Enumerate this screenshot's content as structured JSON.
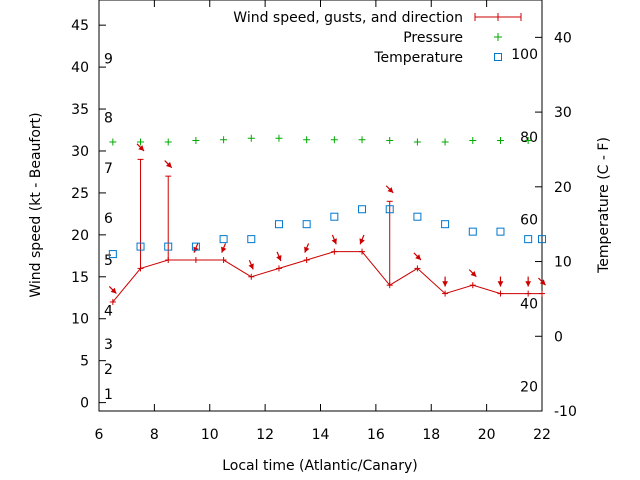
{
  "chart_data": {
    "type": "line",
    "xlabel": "Local time (Atlantic/Canary)",
    "ylabel": "Wind speed (kt - Beaufort)",
    "y2label": "Temperature (C - F)",
    "xlim": [
      6,
      22
    ],
    "ylim": [
      -1,
      48
    ],
    "y2lim": [
      -10,
      45
    ],
    "grid": false,
    "legend_position": "top-right",
    "x_ticks": [
      6,
      8,
      10,
      12,
      14,
      16,
      18,
      20,
      22
    ],
    "y_ticks": [
      0,
      5,
      10,
      15,
      20,
      25,
      30,
      35,
      40,
      45
    ],
    "y2_ticks": [
      -10,
      0,
      10,
      20,
      30,
      40
    ],
    "beaufort_labels": [
      {
        "label": "1",
        "kt": 1
      },
      {
        "label": "2",
        "kt": 4
      },
      {
        "label": "3",
        "kt": 7
      },
      {
        "label": "4",
        "kt": 11
      },
      {
        "label": "5",
        "kt": 17
      },
      {
        "label": "6",
        "kt": 22
      },
      {
        "label": "7",
        "kt": 28
      },
      {
        "label": "8",
        "kt": 34
      },
      {
        "label": "9",
        "kt": 41
      }
    ],
    "fahrenheit_labels": [
      {
        "label": "20",
        "c": -6.7
      },
      {
        "label": "40",
        "c": 4.4
      },
      {
        "label": "60",
        "c": 15.6
      },
      {
        "label": "80",
        "c": 26.7
      },
      {
        "label": "100",
        "c": 37.8
      }
    ],
    "series": [
      {
        "name": "Wind speed, gusts, and direction",
        "color": "#cc0000",
        "points": [
          {
            "x": 6.5,
            "speed": 12,
            "gust": 12,
            "dir": "NW"
          },
          {
            "x": 7.5,
            "speed": 16,
            "gust": 29,
            "dir": "NW"
          },
          {
            "x": 8.5,
            "speed": 17,
            "gust": 27,
            "dir": "NW"
          },
          {
            "x": 9.5,
            "speed": 17,
            "gust": 17,
            "dir": "NNE"
          },
          {
            "x": 10.5,
            "speed": 17,
            "gust": 17,
            "dir": "NNE"
          },
          {
            "x": 11.5,
            "speed": 15,
            "gust": 15,
            "dir": "NNW"
          },
          {
            "x": 12.5,
            "speed": 16,
            "gust": 16,
            "dir": "NNW"
          },
          {
            "x": 13.5,
            "speed": 17,
            "gust": 17,
            "dir": "NNE"
          },
          {
            "x": 14.5,
            "speed": 18,
            "gust": 18,
            "dir": "NNW"
          },
          {
            "x": 15.5,
            "speed": 18,
            "gust": 18,
            "dir": "NNE"
          },
          {
            "x": 16.5,
            "speed": 14,
            "gust": 24,
            "dir": "NW"
          },
          {
            "x": 17.5,
            "speed": 16,
            "gust": 16,
            "dir": "NW"
          },
          {
            "x": 18.5,
            "speed": 13,
            "gust": 13,
            "dir": "N"
          },
          {
            "x": 19.5,
            "speed": 14,
            "gust": 14,
            "dir": "NW"
          },
          {
            "x": 20.5,
            "speed": 13,
            "gust": 13,
            "dir": "N"
          },
          {
            "x": 21.5,
            "speed": 13,
            "gust": 13,
            "dir": "N"
          },
          {
            "x": 22,
            "speed": 13,
            "gust": 13,
            "dir": "NW"
          }
        ]
      },
      {
        "name": "Pressure",
        "color": "#00aa00",
        "x": [
          6.5,
          7.5,
          8.5,
          9.5,
          10.5,
          11.5,
          12.5,
          13.5,
          14.5,
          15.5,
          16.5,
          17.5,
          18.5,
          19.5,
          20.5,
          21.5
        ],
        "y": [
          26,
          26,
          26,
          26.2,
          26.3,
          26.5,
          26.5,
          26.3,
          26.3,
          26.3,
          26.2,
          26,
          26,
          26.2,
          26.2,
          26.2
        ]
      },
      {
        "name": "Temperature",
        "color": "#0077cc",
        "x": [
          6.5,
          7.5,
          8.5,
          9.5,
          10.5,
          11.5,
          12.5,
          13.5,
          14.5,
          15.5,
          16.5,
          17.5,
          18.5,
          19.5,
          20.5,
          21.5,
          22
        ],
        "y": [
          11,
          12,
          12,
          12,
          13,
          13,
          15,
          15,
          16,
          17,
          17,
          16,
          15,
          14,
          14,
          13,
          13
        ]
      }
    ]
  }
}
